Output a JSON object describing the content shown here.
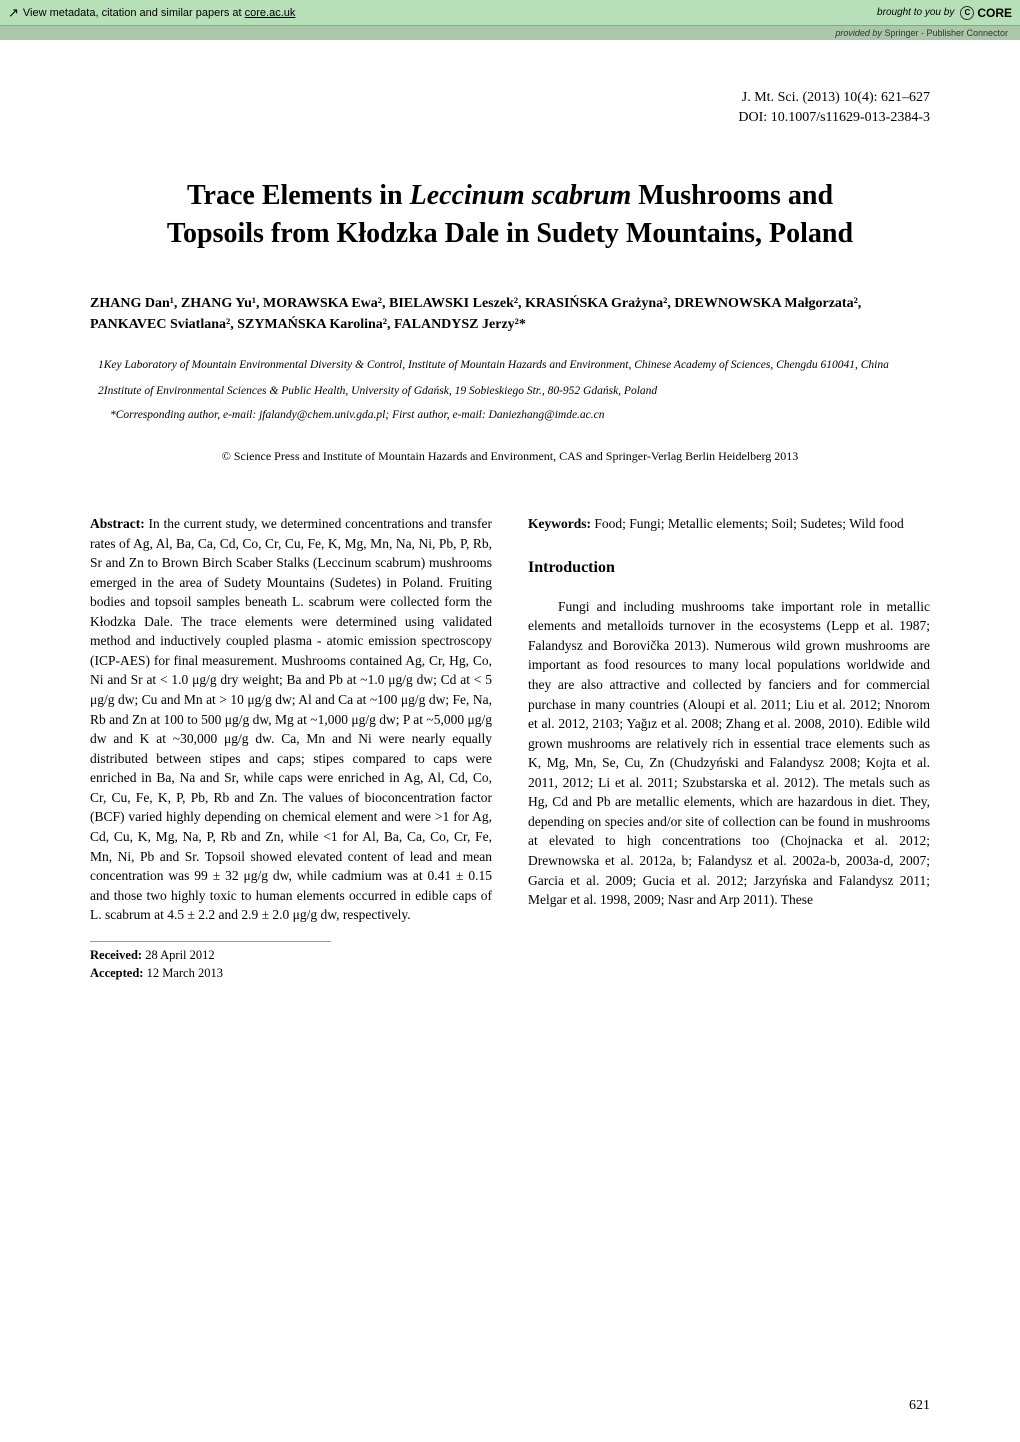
{
  "banner": {
    "left_text": "View metadata, citation and similar papers at ",
    "link_text": "core.ac.uk",
    "brought_by": "brought to you by",
    "logo_text": "CORE",
    "provided_prefix": "provided by ",
    "provider": "Springer - Publisher Connector"
  },
  "journal": {
    "citation": "J. Mt. Sci. (2013) 10(4):  621–627",
    "doi": "DOI: 10.1007/s11629-013-2384-3"
  },
  "title_line1": "Trace Elements in ",
  "title_italic": "Leccinum scabrum",
  "title_line1_end": " Mushrooms and",
  "title_line2": "Topsoils from Kłodzka Dale in Sudety Mountains, Poland",
  "authors": "ZHANG Dan¹, ZHANG Yu¹, MORAWSKA Ewa², BIELAWSKI Leszek², KRASIŃSKA Grażyna², DREWNOWSKA Małgorzata², PANKAVEC Sviatlana², SZYMAŃSKA Karolina², FALANDYSZ Jerzy²*",
  "affiliations": {
    "a1": "1Key Laboratory of Mountain Environmental Diversity & Control, Institute of Mountain Hazards and Environment, Chinese Academy of Sciences, Chengdu 610041, China",
    "a2": "2Institute of Environmental Sciences & Public Health, University of Gdańsk, 19 Sobieskiego Str., 80-952 Gdańsk, Poland"
  },
  "corresponding": "*Corresponding author, e-mail: jfalandy@chem.univ.gda.pl; First author, e-mail: Daniezhang@imde.ac.cn",
  "copyright": "© Science Press and Institute of Mountain Hazards and Environment, CAS and Springer-Verlag Berlin Heidelberg 2013",
  "abstract": {
    "label": "Abstract:",
    "text": " In the current study, we determined concentrations and transfer rates of Ag, Al, Ba, Ca, Cd, Co, Cr, Cu, Fe, K, Mg, Mn, Na, Ni, Pb, P, Rb, Sr and Zn to Brown Birch Scaber Stalks (Leccinum scabrum) mushrooms emerged in the area of Sudety Mountains (Sudetes) in Poland. Fruiting bodies and topsoil samples beneath L. scabrum were collected form the Kłodzka Dale. The trace elements were determined using validated method and inductively coupled plasma - atomic emission spectroscopy (ICP-AES) for final measurement. Mushrooms contained Ag, Cr, Hg, Co, Ni and Sr at < 1.0 μg/g dry weight; Ba and Pb at ~1.0 μg/g dw; Cd at < 5 μg/g dw; Cu and Mn at > 10 μg/g dw; Al and Ca at ~100 μg/g dw; Fe, Na, Rb and Zn at 100 to 500 μg/g dw, Mg at ~1,000 μg/g dw; P at ~5,000 μg/g dw and K at ~30,000 μg/g dw. Ca, Mn and Ni were nearly equally distributed between stipes and caps; stipes compared to caps were enriched in Ba, Na and Sr, while caps were enriched in Ag, Al, Cd, Co, Cr, Cu, Fe, K, P, Pb, Rb and Zn. The values of bioconcentration factor (BCF) varied highly depending on chemical element and were >1 for Ag, Cd, Cu, K, Mg, Na, P, Rb and Zn, while <1 for Al, Ba, Ca, Co, Cr, Fe, Mn, Ni, Pb and Sr. Topsoil showed elevated content of lead and mean concentration was 99 ± 32 μg/g dw, while cadmium was at 0.41 ± 0.15 and those two highly toxic to human elements occurred in edible caps of L. scabrum at 4.5 ± 2.2 and 2.9 ± 2.0 μg/g dw, respectively."
  },
  "received": {
    "r_label": "Received:",
    "r_date": " 28 April 2012",
    "a_label": "Accepted:",
    "a_date": " 12 March 2013"
  },
  "keywords": {
    "label": "Keywords:",
    "text": " Food; Fungi; Metallic elements; Soil; Sudetes; Wild food"
  },
  "intro": {
    "heading": "Introduction",
    "text": "Fungi and including mushrooms take important role in metallic elements and metalloids turnover in the ecosystems (Lepp et al. 1987; Falandysz and Borovička 2013). Numerous wild grown mushrooms are important as food resources to many local populations worldwide and they are also attractive and collected by fanciers and for commercial purchase in many countries (Aloupi et al. 2011; Liu et al. 2012; Nnorom et al. 2012, 2103; Yağız et al. 2008; Zhang et al. 2008, 2010). Edible wild grown mushrooms are relatively rich in essential trace elements such as K, Mg, Mn, Se, Cu, Zn (Chudzyński and Falandysz 2008; Kojta et al. 2011, 2012; Li et al. 2011; Szubstarska et al. 2012). The metals such as Hg, Cd and Pb are metallic elements, which are hazardous in diet. They, depending on species and/or site of collection can be found in mushrooms at elevated to high concentrations too (Chojnacka et al. 2012; Drewnowska et al. 2012a, b; Falandysz et al. 2002a-b, 2003a-d, 2007; Garcia et al. 2009; Gucia et al. 2012; Jarzyńska and Falandysz 2011; Melgar et al. 1998, 2009; Nasr and Arp 2011). These"
  },
  "page_number": "621",
  "colors": {
    "banner_bg": "#b8e0b8",
    "provided_bg": "#a8c8a8",
    "text": "#000000"
  }
}
